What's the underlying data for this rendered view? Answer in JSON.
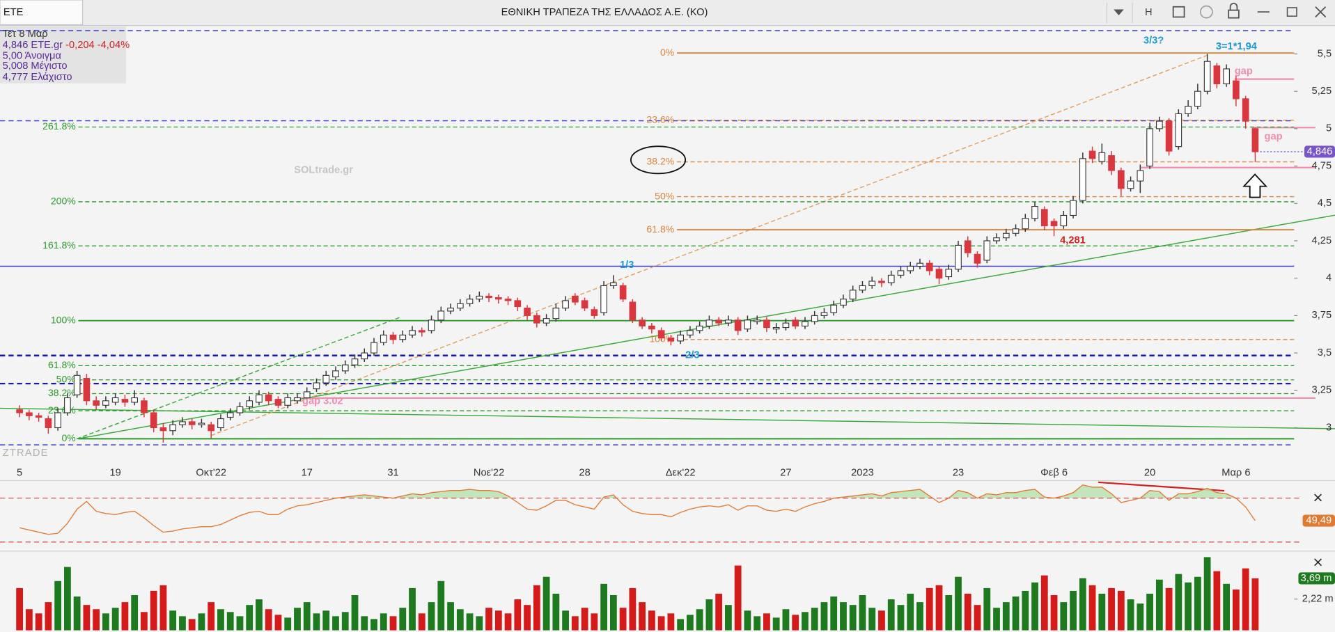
{
  "header": {
    "symbol": "ETE",
    "title": "ΕΘΝΙΚΗ ΤΡΑΠΕΖΑ ΤΗΣ ΕΛΛΑΔΟΣ Α.Ε. (ΚΟ)",
    "button": "H"
  },
  "legend": {
    "date": "Τετ 8 Μαρ",
    "price": "4,846 ETE.gr",
    "change": "-0,204 -4,04%",
    "open": "5,00 Άνοιγμα",
    "high": "5,008 Μέγιστο",
    "low": "4,777 Ελάχιστο"
  },
  "watermark": "SOLtrade.gr",
  "logo": "ZTRADE",
  "annotations": {
    "wave3": "3/3?",
    "ratio": "3=1*1,94",
    "gap_top": "gap",
    "gap_mid": "gap",
    "gap_low": "gap 3.02",
    "wave1": "1/3",
    "wave2": "2/3",
    "low_label": "4,281"
  },
  "chart_data": {
    "type": "candlestick",
    "up_color": "#ffffff",
    "down_color": "#d9363e",
    "categories": [
      "5",
      null,
      null,
      null,
      null,
      null,
      null,
      null,
      null,
      null,
      "19",
      null,
      null,
      null,
      null,
      null,
      null,
      null,
      null,
      null,
      "Οκτ'22",
      null,
      null,
      null,
      null,
      null,
      null,
      null,
      null,
      null,
      "17",
      null,
      null,
      null,
      null,
      null,
      null,
      null,
      null,
      "31",
      null,
      null,
      null,
      null,
      null,
      null,
      null,
      null,
      null,
      "Νοε'22",
      null,
      null,
      null,
      null,
      null,
      null,
      null,
      null,
      null,
      "28",
      null,
      null,
      null,
      null,
      null,
      null,
      null,
      null,
      null,
      "Δεκ'22",
      null,
      null,
      null,
      null,
      null,
      null,
      null,
      null,
      null,
      null,
      "27",
      null,
      null,
      null,
      null,
      null,
      null,
      null,
      "2023",
      null,
      null,
      null,
      null,
      null,
      null,
      null,
      null,
      null,
      "23",
      null,
      null,
      null,
      null,
      null,
      null,
      null,
      null,
      null,
      "Φεβ 6",
      null,
      null,
      null,
      null,
      null,
      null,
      null,
      null,
      null,
      "20",
      null,
      null,
      null,
      null,
      null,
      null,
      null,
      null,
      "Μαρ 6",
      null,
      null
    ],
    "candles": [
      [
        3.12,
        3.15,
        3.07,
        3.1
      ],
      [
        3.1,
        3.12,
        3.05,
        3.08
      ],
      [
        3.08,
        3.1,
        3.04,
        3.07
      ],
      [
        3.06,
        3.08,
        2.96,
        3.0
      ],
      [
        3.0,
        3.13,
        2.98,
        3.1
      ],
      [
        3.1,
        3.23,
        3.08,
        3.2
      ],
      [
        3.22,
        3.38,
        3.2,
        3.35
      ],
      [
        3.33,
        3.36,
        3.15,
        3.18
      ],
      [
        3.18,
        3.21,
        3.12,
        3.15
      ],
      [
        3.15,
        3.21,
        3.13,
        3.18
      ],
      [
        3.17,
        3.23,
        3.15,
        3.2
      ],
      [
        3.19,
        3.22,
        3.14,
        3.17
      ],
      [
        3.17,
        3.25,
        3.15,
        3.2
      ],
      [
        3.18,
        3.2,
        3.07,
        3.1
      ],
      [
        3.1,
        3.12,
        2.97,
        3.0
      ],
      [
        3.0,
        3.03,
        2.9,
        2.98
      ],
      [
        2.98,
        3.05,
        2.95,
        3.02
      ],
      [
        3.02,
        3.07,
        3.0,
        3.04
      ],
      [
        3.04,
        3.06,
        2.99,
        3.02
      ],
      [
        3.02,
        3.06,
        3.0,
        3.03
      ],
      [
        3.02,
        3.04,
        2.93,
        2.98
      ],
      [
        3.0,
        3.09,
        2.98,
        3.06
      ],
      [
        3.07,
        3.13,
        3.05,
        3.1
      ],
      [
        3.1,
        3.17,
        3.08,
        3.14
      ],
      [
        3.14,
        3.21,
        3.12,
        3.18
      ],
      [
        3.17,
        3.25,
        3.15,
        3.22
      ],
      [
        3.22,
        3.24,
        3.15,
        3.18
      ],
      [
        3.19,
        3.21,
        3.13,
        3.15
      ],
      [
        3.15,
        3.23,
        3.13,
        3.2
      ],
      [
        3.18,
        3.23,
        3.16,
        3.2
      ],
      [
        3.2,
        3.27,
        3.18,
        3.24
      ],
      [
        3.26,
        3.33,
        3.24,
        3.3
      ],
      [
        3.3,
        3.38,
        3.28,
        3.35
      ],
      [
        3.34,
        3.41,
        3.32,
        3.38
      ],
      [
        3.38,
        3.45,
        3.36,
        3.42
      ],
      [
        3.42,
        3.49,
        3.4,
        3.46
      ],
      [
        3.46,
        3.53,
        3.44,
        3.5
      ],
      [
        3.5,
        3.6,
        3.48,
        3.57
      ],
      [
        3.57,
        3.65,
        3.55,
        3.62
      ],
      [
        3.62,
        3.64,
        3.56,
        3.59
      ],
      [
        3.59,
        3.65,
        3.57,
        3.62
      ],
      [
        3.62,
        3.68,
        3.6,
        3.65
      ],
      [
        3.65,
        3.67,
        3.61,
        3.64
      ],
      [
        3.65,
        3.75,
        3.63,
        3.72
      ],
      [
        3.72,
        3.81,
        3.7,
        3.78
      ],
      [
        3.78,
        3.83,
        3.76,
        3.8
      ],
      [
        3.8,
        3.86,
        3.78,
        3.83
      ],
      [
        3.83,
        3.89,
        3.81,
        3.86
      ],
      [
        3.86,
        3.91,
        3.84,
        3.88
      ],
      [
        3.88,
        3.9,
        3.84,
        3.87
      ],
      [
        3.87,
        3.89,
        3.83,
        3.86
      ],
      [
        3.86,
        3.88,
        3.82,
        3.85
      ],
      [
        3.85,
        3.87,
        3.78,
        3.81
      ],
      [
        3.8,
        3.82,
        3.72,
        3.75
      ],
      [
        3.75,
        3.77,
        3.67,
        3.7
      ],
      [
        3.7,
        3.76,
        3.68,
        3.73
      ],
      [
        3.73,
        3.83,
        3.71,
        3.8
      ],
      [
        3.8,
        3.88,
        3.78,
        3.85
      ],
      [
        3.88,
        3.9,
        3.82,
        3.84
      ],
      [
        3.85,
        3.87,
        3.78,
        3.8
      ],
      [
        3.79,
        3.81,
        3.73,
        3.75
      ],
      [
        3.77,
        3.98,
        3.75,
        3.95
      ],
      [
        3.95,
        4.02,
        3.93,
        3.97
      ],
      [
        3.95,
        3.97,
        3.84,
        3.86
      ],
      [
        3.84,
        3.86,
        3.7,
        3.72
      ],
      [
        3.72,
        3.74,
        3.66,
        3.68
      ],
      [
        3.68,
        3.7,
        3.63,
        3.66
      ],
      [
        3.65,
        3.67,
        3.58,
        3.6
      ],
      [
        3.6,
        3.62,
        3.55,
        3.58
      ],
      [
        3.58,
        3.65,
        3.56,
        3.62
      ],
      [
        3.62,
        3.68,
        3.6,
        3.65
      ],
      [
        3.65,
        3.71,
        3.63,
        3.68
      ],
      [
        3.68,
        3.75,
        3.66,
        3.72
      ],
      [
        3.72,
        3.74,
        3.68,
        3.7
      ],
      [
        3.7,
        3.75,
        3.68,
        3.72
      ],
      [
        3.72,
        3.74,
        3.62,
        3.65
      ],
      [
        3.66,
        3.75,
        3.64,
        3.72
      ],
      [
        3.71,
        3.75,
        3.69,
        3.72
      ],
      [
        3.72,
        3.74,
        3.64,
        3.67
      ],
      [
        3.66,
        3.7,
        3.63,
        3.67
      ],
      [
        3.67,
        3.73,
        3.65,
        3.7
      ],
      [
        3.72,
        3.74,
        3.66,
        3.68
      ],
      [
        3.68,
        3.74,
        3.66,
        3.71
      ],
      [
        3.71,
        3.78,
        3.69,
        3.75
      ],
      [
        3.75,
        3.8,
        3.73,
        3.77
      ],
      [
        3.77,
        3.85,
        3.75,
        3.82
      ],
      [
        3.82,
        3.89,
        3.8,
        3.86
      ],
      [
        3.86,
        3.95,
        3.84,
        3.92
      ],
      [
        3.92,
        3.98,
        3.9,
        3.95
      ],
      [
        3.95,
        4.01,
        3.93,
        3.98
      ],
      [
        3.98,
        4.0,
        3.94,
        3.97
      ],
      [
        3.97,
        4.05,
        3.95,
        4.02
      ],
      [
        4.02,
        4.08,
        4.0,
        4.05
      ],
      [
        4.05,
        4.11,
        4.03,
        4.08
      ],
      [
        4.08,
        4.13,
        4.06,
        4.1
      ],
      [
        4.1,
        4.12,
        4.02,
        4.05
      ],
      [
        4.06,
        4.08,
        3.96,
        4.0
      ],
      [
        4.01,
        4.09,
        3.99,
        4.06
      ],
      [
        4.06,
        4.25,
        4.04,
        4.22
      ],
      [
        4.25,
        4.28,
        4.14,
        4.17
      ],
      [
        4.16,
        4.18,
        4.07,
        4.1
      ],
      [
        4.12,
        4.28,
        4.1,
        4.25
      ],
      [
        4.25,
        4.3,
        4.23,
        4.27
      ],
      [
        4.27,
        4.33,
        4.25,
        4.3
      ],
      [
        4.3,
        4.36,
        4.28,
        4.33
      ],
      [
        4.33,
        4.43,
        4.31,
        4.4
      ],
      [
        4.4,
        4.51,
        4.38,
        4.48
      ],
      [
        4.46,
        4.48,
        4.32,
        4.35
      ],
      [
        4.38,
        4.4,
        4.281,
        4.35
      ],
      [
        4.35,
        4.45,
        4.33,
        4.42
      ],
      [
        4.42,
        4.55,
        4.4,
        4.52
      ],
      [
        4.52,
        4.84,
        4.5,
        4.8
      ],
      [
        4.85,
        4.88,
        4.77,
        4.8
      ],
      [
        4.78,
        4.9,
        4.76,
        4.84
      ],
      [
        4.82,
        4.85,
        4.69,
        4.72
      ],
      [
        4.72,
        4.74,
        4.55,
        4.6
      ],
      [
        4.6,
        4.68,
        4.58,
        4.65
      ],
      [
        4.65,
        4.76,
        4.57,
        4.72
      ],
      [
        4.75,
        5.04,
        4.73,
        5.0
      ],
      [
        5.0,
        5.08,
        4.98,
        5.05
      ],
      [
        5.05,
        5.07,
        4.82,
        4.85
      ],
      [
        4.88,
        5.13,
        4.86,
        5.1
      ],
      [
        5.1,
        5.19,
        5.08,
        5.15
      ],
      [
        5.15,
        5.3,
        5.13,
        5.25
      ],
      [
        5.25,
        5.5,
        5.23,
        5.45
      ],
      [
        5.42,
        5.44,
        5.27,
        5.3
      ],
      [
        5.3,
        5.43,
        5.28,
        5.4
      ],
      [
        5.32,
        5.36,
        5.15,
        5.2
      ],
      [
        5.2,
        5.22,
        5.0,
        5.05
      ],
      [
        5.0,
        5.008,
        4.777,
        4.846
      ]
    ],
    "ylim": [
      2.76,
      5.69
    ],
    "yticks": [
      {
        "value": 5.5,
        "label": "5,5"
      },
      {
        "value": 5.25,
        "label": "5,25"
      },
      5,
      {
        "value": 4.75,
        "label": "4,75"
      },
      {
        "value": 4.5,
        "label": "4,5"
      },
      {
        "value": 4.25,
        "label": "4,25"
      },
      4,
      {
        "value": 3.75,
        "label": "3,75"
      },
      {
        "value": 3.5,
        "label": "3,5"
      },
      {
        "value": 3.25,
        "label": "3,25"
      },
      3
    ],
    "last_price": {
      "value": 4.846,
      "label": "4,846",
      "color": "#7a55c9"
    },
    "fib_left": {
      "color": "#2a9a2a",
      "levels": [
        {
          "label": "261.8%",
          "value": 5.011
        },
        {
          "label": "200%",
          "value": 4.511
        },
        {
          "label": "161.8%",
          "value": 4.216
        },
        {
          "label": "100%",
          "value": 3.716
        },
        {
          "label": "61.8%",
          "value": 3.415
        },
        {
          "label": "50%",
          "value": 3.32
        },
        {
          "label": "38.2%",
          "value": 3.228
        },
        {
          "label": "23.6%",
          "value": 3.113
        },
        {
          "label": "0%",
          "value": 2.926
        }
      ]
    },
    "fib_right": {
      "color": "#d9843a",
      "levels": [
        {
          "label": "0%",
          "value": 5.506
        },
        {
          "label": "23.6%",
          "value": 5.057
        },
        {
          "label": "38.2%",
          "value": 4.778
        },
        {
          "label": "50%",
          "value": 4.545
        },
        {
          "label": "61.8%",
          "value": 4.324
        },
        {
          "label": "100%",
          "value": 3.59
        }
      ]
    },
    "rsi": {
      "color": "#e07a30",
      "fill": "#b9e2b2",
      "values": [
        43,
        41,
        39,
        37,
        38,
        47,
        60,
        67,
        58,
        56,
        55,
        57,
        58,
        52,
        45,
        39,
        40,
        42,
        43,
        44,
        44,
        46,
        50,
        54,
        57,
        58,
        55,
        55,
        60,
        63,
        64,
        66,
        68,
        70,
        71,
        72,
        73,
        72,
        71,
        70,
        72,
        74,
        73,
        75,
        76,
        77,
        77,
        78,
        77,
        77,
        76,
        72,
        66,
        60,
        59,
        63,
        68,
        68,
        64,
        62,
        60,
        71,
        73,
        64,
        58,
        56,
        55,
        55,
        53,
        57,
        60,
        62,
        63,
        62,
        64,
        59,
        63,
        63,
        59,
        58,
        60,
        58,
        62,
        65,
        67,
        70,
        71,
        72,
        73,
        74,
        72,
        75,
        76,
        77,
        78,
        72,
        66,
        70,
        77,
        75,
        70,
        74,
        73,
        75,
        75,
        77,
        78,
        71,
        70,
        72,
        75,
        82,
        80,
        80,
        74,
        66,
        68,
        70,
        77,
        76,
        68,
        74,
        74,
        76,
        79,
        75,
        74,
        70,
        62,
        49.49
      ],
      "ylim": [
        24,
        86
      ],
      "levels": [
        70,
        30
      ],
      "last": {
        "value": 49.49,
        "label": "49,49"
      }
    },
    "volume": {
      "up_color": "#1e7a1e",
      "down_color": "#d51a1a",
      "values": [
        3.0,
        1.5,
        1.2,
        2.0,
        3.5,
        4.5,
        2.4,
        1.8,
        1.5,
        1.2,
        1.6,
        2.0,
        2.5,
        1.3,
        2.8,
        3.2,
        1.4,
        1.0,
        0.8,
        1.2,
        2.0,
        1.5,
        1.3,
        1.0,
        1.8,
        2.2,
        1.5,
        1.1,
        0.9,
        1.6,
        2.0,
        1.2,
        1.4,
        1.0,
        1.3,
        2.5,
        1.0,
        0.8,
        1.2,
        1.0,
        1.6,
        3.0,
        1.2,
        2.0,
        3.5,
        2.0,
        1.5,
        1.2,
        1.0,
        1.6,
        1.4,
        1.2,
        2.2,
        1.8,
        3.2,
        3.8,
        2.6,
        1.4,
        1.0,
        1.6,
        1.2,
        3.3,
        2.5,
        1.6,
        3.0,
        2.0,
        1.4,
        1.0,
        1.2,
        0.8,
        1.1,
        1.5,
        2.2,
        2.6,
        1.8,
        4.6,
        1.4,
        1.0,
        1.2,
        0.9,
        1.5,
        1.1,
        1.3,
        1.6,
        2.0,
        2.4,
        2.0,
        1.8,
        2.5,
        1.6,
        1.4,
        2.2,
        1.8,
        2.6,
        2.0,
        3.0,
        3.2,
        2.5,
        3.8,
        2.6,
        1.8,
        3.0,
        1.6,
        2.0,
        2.4,
        2.8,
        3.4,
        3.9,
        2.5,
        2.0,
        2.8,
        3.7,
        3.2,
        2.6,
        3.0,
        2.8,
        2.2,
        1.9,
        2.6,
        3.6,
        3.0,
        4.0,
        3.4,
        3.8,
        5.2,
        4.2,
        3.3,
        2.9,
        4.4,
        3.69
      ],
      "ylim": [
        0,
        5.5
      ],
      "ticks": [
        {
          "value": 2.22,
          "label": "2,22 m"
        }
      ],
      "last": {
        "value": 3.69,
        "label": "3,69 m"
      }
    }
  }
}
